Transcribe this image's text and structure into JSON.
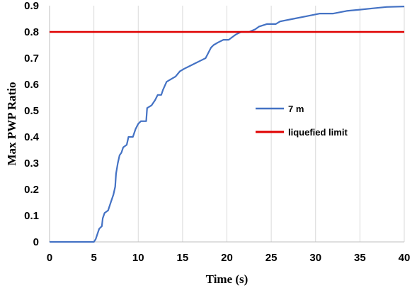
{
  "chart_data": {
    "type": "line",
    "title": "",
    "xlabel": "Time (s)",
    "ylabel": "Max PWP Ratio",
    "xlim": [
      0,
      40
    ],
    "ylim": [
      0,
      0.9
    ],
    "x_ticks": [
      "0",
      "5",
      "10",
      "15",
      "20",
      "25",
      "30",
      "35",
      "40"
    ],
    "y_ticks": [
      "0",
      "0.1",
      "0.2",
      "0.3",
      "0.4",
      "0.5",
      "0.6",
      "0.7",
      "0.8",
      "0.9"
    ],
    "grid": "vertical",
    "legend_position": "center-right",
    "series": [
      {
        "name": "7 m",
        "color": "#4472C4",
        "points": [
          [
            0,
            0
          ],
          [
            5.0,
            0
          ],
          [
            5.2,
            0.01
          ],
          [
            5.4,
            0.03
          ],
          [
            5.6,
            0.05
          ],
          [
            5.9,
            0.06
          ],
          [
            6.0,
            0.09
          ],
          [
            6.2,
            0.11
          ],
          [
            6.6,
            0.12
          ],
          [
            6.9,
            0.15
          ],
          [
            7.2,
            0.18
          ],
          [
            7.4,
            0.21
          ],
          [
            7.5,
            0.26
          ],
          [
            7.7,
            0.3
          ],
          [
            7.9,
            0.33
          ],
          [
            8.1,
            0.34
          ],
          [
            8.3,
            0.36
          ],
          [
            8.7,
            0.37
          ],
          [
            8.9,
            0.4
          ],
          [
            9.4,
            0.4
          ],
          [
            9.5,
            0.41
          ],
          [
            9.7,
            0.43
          ],
          [
            10.0,
            0.45
          ],
          [
            10.3,
            0.46
          ],
          [
            10.9,
            0.46
          ],
          [
            11.0,
            0.51
          ],
          [
            11.5,
            0.52
          ],
          [
            11.9,
            0.54
          ],
          [
            12.2,
            0.56
          ],
          [
            12.6,
            0.56
          ],
          [
            12.8,
            0.58
          ],
          [
            13.2,
            0.61
          ],
          [
            13.7,
            0.62
          ],
          [
            14.2,
            0.63
          ],
          [
            14.7,
            0.65
          ],
          [
            15.2,
            0.66
          ],
          [
            15.8,
            0.67
          ],
          [
            16.4,
            0.68
          ],
          [
            17.0,
            0.69
          ],
          [
            17.6,
            0.7
          ],
          [
            17.9,
            0.72
          ],
          [
            18.2,
            0.74
          ],
          [
            18.5,
            0.75
          ],
          [
            19.0,
            0.76
          ],
          [
            19.6,
            0.77
          ],
          [
            20.2,
            0.77
          ],
          [
            20.6,
            0.78
          ],
          [
            21.0,
            0.79
          ],
          [
            21.6,
            0.8
          ],
          [
            22.5,
            0.8
          ],
          [
            23.2,
            0.81
          ],
          [
            23.6,
            0.82
          ],
          [
            24.5,
            0.83
          ],
          [
            25.5,
            0.83
          ],
          [
            26.0,
            0.84
          ],
          [
            27.5,
            0.85
          ],
          [
            29.0,
            0.86
          ],
          [
            30.5,
            0.87
          ],
          [
            32.0,
            0.87
          ],
          [
            33.5,
            0.88
          ],
          [
            35.0,
            0.885
          ],
          [
            36.5,
            0.89
          ],
          [
            38.0,
            0.895
          ],
          [
            40.0,
            0.897
          ]
        ]
      },
      {
        "name": "liquefied limit",
        "color": "#E00000",
        "points": [
          [
            0,
            0.8
          ],
          [
            40,
            0.8
          ]
        ]
      }
    ]
  }
}
